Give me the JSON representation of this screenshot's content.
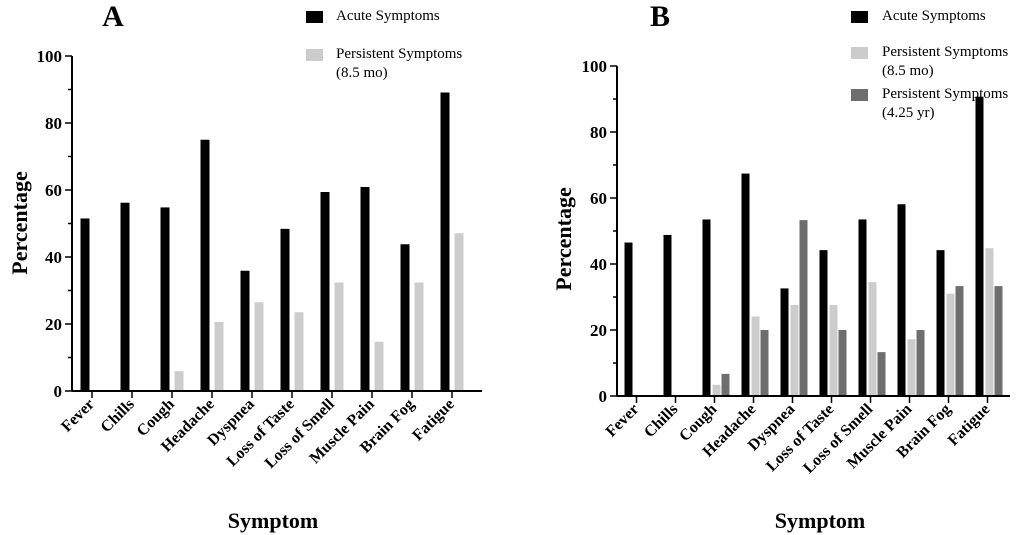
{
  "chart_data": [
    {
      "type": "bar",
      "panel": "A",
      "title": "",
      "xlabel": "Symptom",
      "ylabel": "Percentage",
      "ylim": [
        0,
        100
      ],
      "yticks": [
        "0",
        "20",
        "40",
        "60",
        "80",
        "100"
      ],
      "categories": [
        "Fever",
        "Chills",
        "Cough",
        "Headache",
        "Dyspnea",
        "Loss of Taste",
        "Loss of Smell",
        "Muscle Pain",
        "Brain Fog",
        "Fatigue"
      ],
      "series": [
        {
          "name": "Acute Symptoms",
          "legend_lines": [
            "Acute Symptoms"
          ],
          "color": "#000000",
          "values": [
            51.5,
            56.2,
            54.8,
            75.0,
            35.9,
            48.4,
            59.4,
            60.9,
            43.8,
            89.1
          ]
        },
        {
          "name": "Persistent Symptoms (8.5 mo)",
          "legend_lines": [
            "Persistent Symptoms",
            "(8.5 mo)"
          ],
          "color": "#cccccc",
          "values": [
            0,
            0,
            5.9,
            20.6,
            26.5,
            23.5,
            32.4,
            14.7,
            32.4,
            47.1
          ]
        }
      ],
      "legend": "top-right"
    },
    {
      "type": "bar",
      "panel": "B",
      "title": "",
      "xlabel": "Symptom",
      "ylabel": "Percentage",
      "ylim": [
        0,
        100
      ],
      "yticks": [
        "0",
        "20",
        "40",
        "60",
        "80",
        "100"
      ],
      "categories": [
        "Fever",
        "Chills",
        "Cough",
        "Headache",
        "Dyspnea",
        "Loss of Taste",
        "Loss of Smell",
        "Muscle Pain",
        "Brain Fog",
        "Fatigue"
      ],
      "series": [
        {
          "name": "Acute Symptoms",
          "legend_lines": [
            "Acute Symptoms"
          ],
          "color": "#000000",
          "values": [
            46.5,
            48.8,
            53.5,
            67.4,
            32.6,
            44.2,
            53.5,
            58.1,
            44.2,
            90.7
          ]
        },
        {
          "name": "Persistent Symptoms (8.5 mo)",
          "legend_lines": [
            "Persistent Symptoms",
            "(8.5 mo)"
          ],
          "color": "#cccccc",
          "values": [
            0,
            0,
            3.4,
            24.1,
            27.6,
            27.6,
            34.5,
            17.2,
            31.0,
            44.8
          ]
        },
        {
          "name": "Persistent Symptoms (4.25 yr)",
          "legend_lines": [
            "Persistent Symptoms",
            "(4.25 yr)"
          ],
          "color": "#6e6e6e",
          "values": [
            0,
            0,
            6.7,
            20.0,
            53.3,
            20.0,
            13.3,
            20.0,
            33.3,
            33.3
          ]
        }
      ],
      "legend": "top-right"
    }
  ]
}
